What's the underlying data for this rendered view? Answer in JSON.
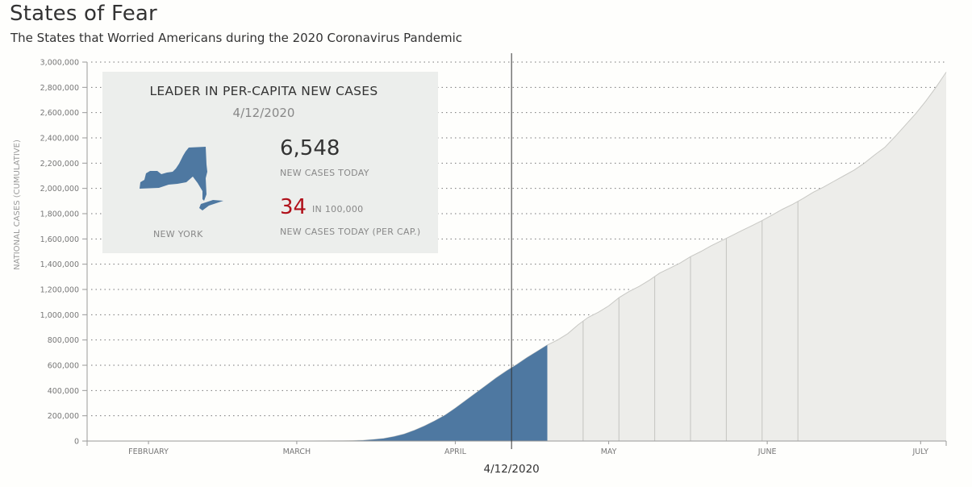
{
  "header": {
    "title": "States of Fear",
    "subtitle": "The States that Worried Americans during the 2020 Coronavirus Pandemic"
  },
  "colors": {
    "filled_area": "#4e78a1",
    "future_area": "#ededea",
    "panel_bg": "#eceeec",
    "highlight_red": "#b0101a"
  },
  "infobox": {
    "heading": "LEADER IN PER-CAPITA NEW CASES",
    "date": "4/12/2020",
    "state": "NEW YORK",
    "state_icon": "new-york-state-shape",
    "new_cases": "6,548",
    "new_cases_label": "NEW CASES TODAY",
    "per_capita": "34",
    "per_capita_unit": "IN 100,000",
    "per_capita_label": "NEW CASES TODAY (PER CAP.)"
  },
  "chart_data": {
    "type": "area",
    "title": "",
    "ylabel": "NATIONAL CASES (CUMULATIVE)",
    "xlabel": "",
    "ylim": [
      0,
      3000000
    ],
    "xlim_day_of_year": [
      20,
      188
    ],
    "yticks": [
      0,
      200000,
      400000,
      600000,
      800000,
      1000000,
      1200000,
      1400000,
      1600000,
      1800000,
      2000000,
      2200000,
      2400000,
      2600000,
      2800000,
      3000000
    ],
    "ytick_labels": [
      "0",
      "200,000",
      "400,000",
      "600,000",
      "800,000",
      "1,000,000",
      "1,200,000",
      "1,400,000",
      "1,600,000",
      "1,800,000",
      "2,000,000",
      "2,200,000",
      "2,400,000",
      "2,600,000",
      "2,800,000",
      "3,000,000"
    ],
    "xticks": [
      {
        "label": "FEBRUARY",
        "day": 32
      },
      {
        "label": "MARCH",
        "day": 61
      },
      {
        "label": "APRIL",
        "day": 92
      },
      {
        "label": "MAY",
        "day": 122
      },
      {
        "label": "JUNE",
        "day": 153
      },
      {
        "label": "JULY",
        "day": 183
      }
    ],
    "grid": true,
    "current_marker": {
      "day": 103,
      "label": "4/12/2020"
    },
    "filled_through_day": 110,
    "week_lines_days": [
      117,
      124,
      131,
      138,
      145,
      152,
      159
    ],
    "series": [
      {
        "name": "National cases (cumulative)",
        "x": [
          20,
          40,
          60,
          66,
          70,
          72,
          74,
          76,
          78,
          80,
          82,
          84,
          86,
          88,
          90,
          92,
          94,
          96,
          98,
          100,
          102,
          103,
          104,
          106,
          108,
          110,
          112,
          114,
          116,
          118,
          120,
          122,
          124,
          126,
          128,
          130,
          132,
          134,
          136,
          138,
          140,
          142,
          144,
          146,
          148,
          150,
          152,
          154,
          156,
          158,
          160,
          162,
          164,
          166,
          168,
          170,
          172,
          174,
          176,
          178,
          180,
          182,
          184,
          186,
          188
        ],
        "y": [
          0,
          10,
          100,
          500,
          1500,
          3000,
          6000,
          12000,
          20000,
          35000,
          55000,
          85000,
          120000,
          160000,
          205000,
          260000,
          320000,
          380000,
          440000,
          500000,
          555000,
          580000,
          605000,
          660000,
          710000,
          760000,
          800000,
          850000,
          920000,
          980000,
          1020000,
          1070000,
          1135000,
          1185000,
          1225000,
          1275000,
          1330000,
          1370000,
          1410000,
          1460000,
          1500000,
          1545000,
          1585000,
          1625000,
          1665000,
          1705000,
          1745000,
          1790000,
          1835000,
          1875000,
          1920000,
          1970000,
          2010000,
          2055000,
          2100000,
          2145000,
          2200000,
          2265000,
          2325000,
          2410000,
          2500000,
          2590000,
          2690000,
          2800000,
          2920000
        ]
      }
    ]
  }
}
